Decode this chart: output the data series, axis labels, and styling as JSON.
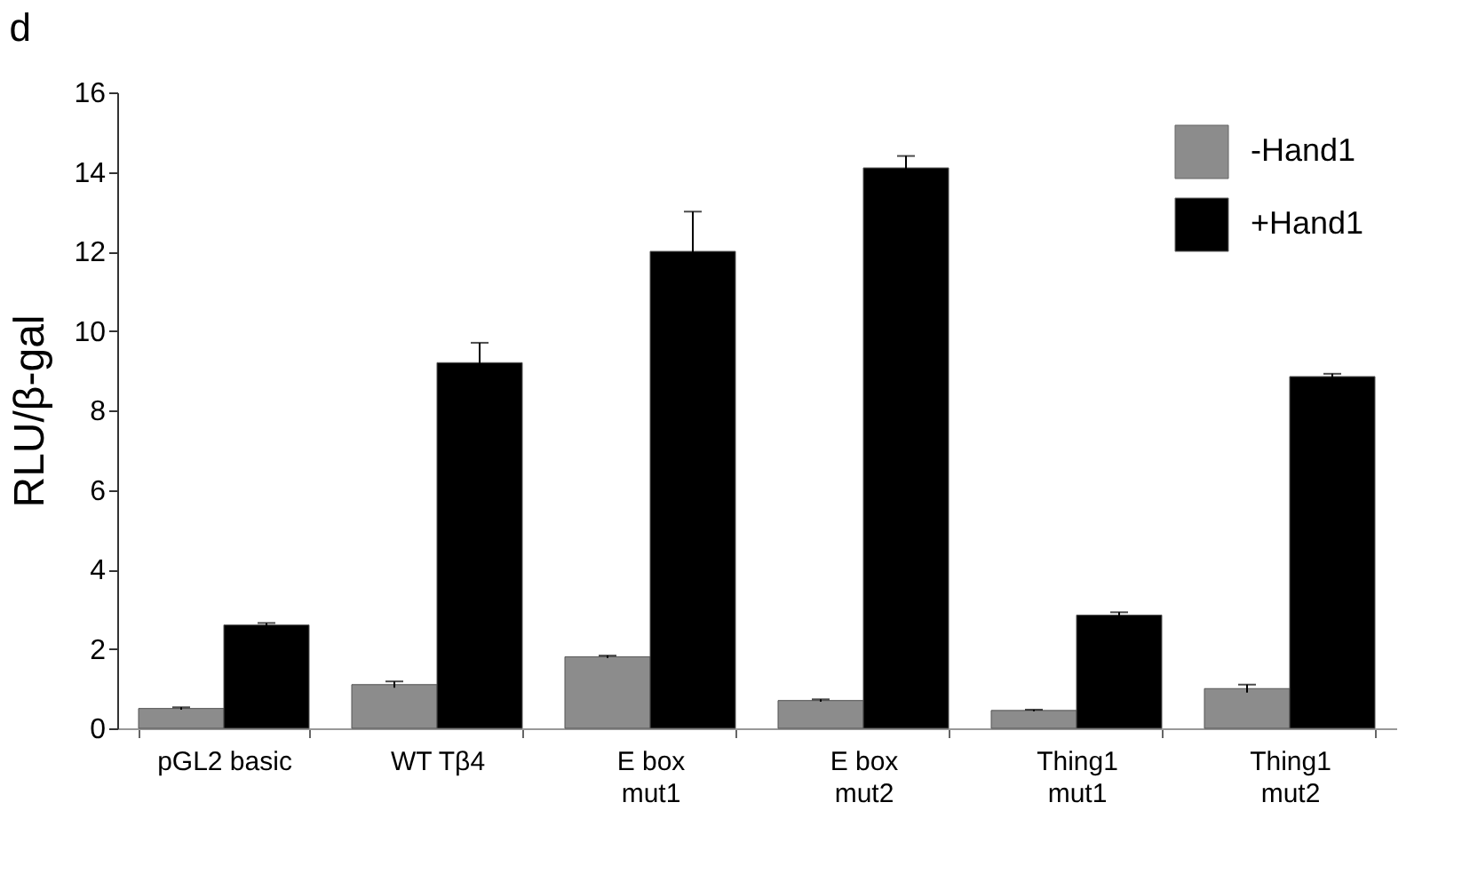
{
  "chart_data": {
    "type": "bar",
    "title": "d",
    "ylabel": "RLU/β-gal",
    "categories": [
      "pGL2 basic",
      "WT Tβ4",
      "E box\nmut1",
      "E box\nmut2",
      "Thing1\nmut1",
      "Thing1\nmut2"
    ],
    "series": [
      {
        "name": "-Hand1",
        "color": "#8c8c8c",
        "values": [
          0.5,
          1.1,
          1.8,
          0.7,
          0.45,
          1.0
        ],
        "errors": [
          0.03,
          0.08,
          0.03,
          0.03,
          0.02,
          0.1
        ]
      },
      {
        "name": "+Hand1",
        "color": "#000000",
        "values": [
          2.6,
          9.2,
          12.0,
          14.1,
          2.85,
          8.85
        ],
        "errors": [
          0.05,
          0.5,
          1.0,
          0.3,
          0.07,
          0.07
        ]
      }
    ],
    "ylim": [
      0,
      16
    ],
    "yticks": [
      0,
      2,
      4,
      6,
      8,
      10,
      12,
      14,
      16
    ],
    "grid": false,
    "legend": "top right"
  }
}
